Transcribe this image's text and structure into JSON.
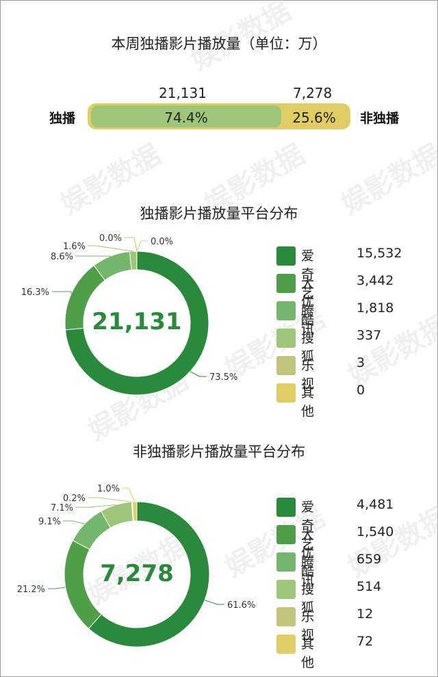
{
  "colors": {
    "aiqiyi": "#2a8a3c",
    "youku": "#4f9e48",
    "tencent": "#74b66c",
    "sohu": "#9dc678",
    "letv": "#c2c47c",
    "other": "#e0cd63",
    "center_text": "#2a8a3c"
  },
  "watermark": "娱影数据",
  "bar": {
    "title": "本周独播影片播放量（单位：万）",
    "left_label": "独播",
    "right_label": "非独播",
    "left_value": "21,131",
    "right_value": "7,278",
    "left_pct": "74.4%",
    "right_pct": "25.6%",
    "left_fraction": 0.744
  },
  "chart_data": [
    {
      "type": "pie",
      "title": "独播影片播放量平台分布",
      "center_value": "21,131",
      "categories": [
        "爱奇艺",
        "大优酷",
        "腾讯",
        "搜狐",
        "乐视",
        "其他"
      ],
      "values": [
        15532,
        3442,
        1818,
        337,
        3,
        0
      ],
      "value_labels": [
        "15,532",
        "3,442",
        "1,818",
        "337",
        "3",
        "0"
      ],
      "percent_labels": [
        "73.5%",
        "16.3%",
        "8.6%",
        "1.6%",
        "0.0%",
        "0.0%"
      ]
    },
    {
      "type": "pie",
      "title": "非独播影片播放量平台分布",
      "center_value": "7,278",
      "categories": [
        "爱奇艺",
        "大优酷",
        "腾讯",
        "搜狐",
        "乐视",
        "其他"
      ],
      "values": [
        4481,
        1540,
        659,
        514,
        12,
        72
      ],
      "value_labels": [
        "4,481",
        "1,540",
        "659",
        "514",
        "12",
        "72"
      ],
      "percent_labels": [
        "61.6%",
        "21.2%",
        "9.1%",
        "7.1%",
        "0.2%",
        "1.0%"
      ]
    }
  ]
}
